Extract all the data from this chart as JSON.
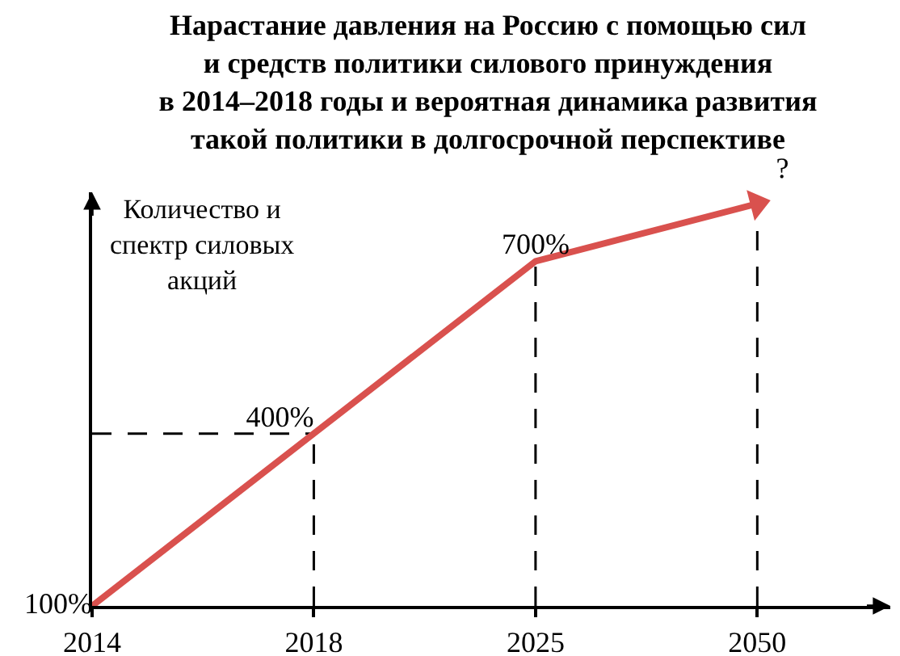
{
  "chart_data": {
    "type": "line",
    "title": "Нарастание давления на Россию с помощью сил\nи средств политики силового принуждения\nв 2014–2018 годы и вероятная динамика развития\nтакой политики в долгосрочной перспективе",
    "ylabel": "Количество и\nспектр силовых\nакций",
    "categories": [
      "2014",
      "2018",
      "2025",
      "2050"
    ],
    "values": [
      100,
      400,
      700,
      800
    ],
    "color": "#d9514e",
    "value_labels": [
      "100%",
      "400%",
      "700%",
      "?"
    ],
    "ylim": [
      100,
      820
    ],
    "tick_labels": "x",
    "ref_lines": [
      {
        "axis": "x",
        "value": "2018",
        "color": "#000000",
        "line_style": "dashed"
      },
      {
        "axis": "x",
        "value": "2025",
        "color": "#000000",
        "line_style": "dashed"
      },
      {
        "axis": "x",
        "value": "2050",
        "color": "#000000",
        "line_style": "dashed"
      },
      {
        "axis": "y",
        "value": 400,
        "color": "#000000",
        "line_style": "dashed"
      }
    ]
  }
}
